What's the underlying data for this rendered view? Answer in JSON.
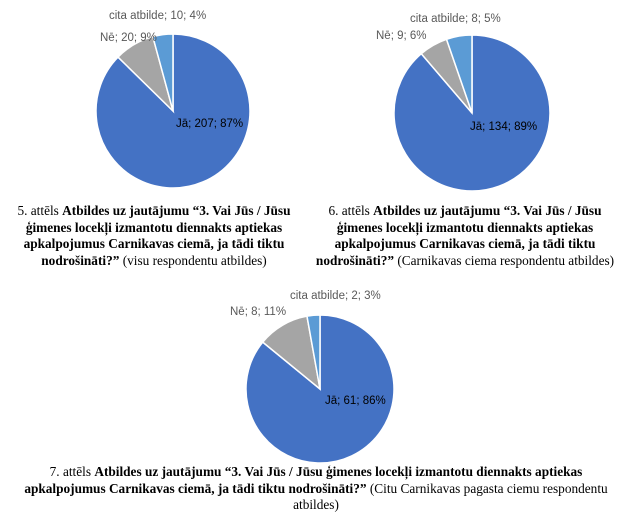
{
  "chart_data": [
    {
      "type": "pie",
      "slices": [
        {
          "category": "Jā",
          "count": 207,
          "percent": 87,
          "label": "Jā; 207; 87%"
        },
        {
          "category": "Nē",
          "count": 20,
          "percent": 9,
          "label": "Nē; 20; 9%"
        },
        {
          "category": "cita atbilde",
          "count": 10,
          "percent": 4,
          "label": "cita atbilde; 10; 4%"
        }
      ]
    },
    {
      "type": "pie",
      "slices": [
        {
          "category": "Jā",
          "count": 134,
          "percent": 89,
          "label": "Jā; 134; 89%"
        },
        {
          "category": "Nē",
          "count": 9,
          "percent": 6,
          "label": "Nē; 9; 6%"
        },
        {
          "category": "cita atbilde",
          "count": 8,
          "percent": 5,
          "label": "cita atbilde; 8; 5%"
        }
      ]
    },
    {
      "type": "pie",
      "slices": [
        {
          "category": "Jā",
          "count": 61,
          "percent": 86,
          "label": "Jā; 61; 86%"
        },
        {
          "category": "Nē",
          "count": 8,
          "percent": 11,
          "label": "Nē; 8; 11%"
        },
        {
          "category": "cita atbilde",
          "count": 2,
          "percent": 3,
          "label": "cita atbilde; 2; 3%"
        }
      ]
    }
  ],
  "colors": {
    "ja": "#4472C4",
    "ne": "#A5A5A5",
    "cita": "#5B9BD5"
  },
  "captions": [
    {
      "prefix": "5. attēls ",
      "bold": "Atbildes uz jautājumu “3. Vai Jūs / Jūsu ģimenes locekļi izmantotu diennakts aptiekas apkalpojumus Carnikavas ciemā, ja tādi tiktu nodrošināti?”",
      "suffix": " (visu respondentu atbildes)"
    },
    {
      "prefix": "6. attēls ",
      "bold": "Atbildes uz jautājumu “3. Vai Jūs / Jūsu ģimenes locekļi izmantotu diennakts aptiekas apkalpojumus Carnikavas ciemā, ja tādi tiktu nodrošināti?”",
      "suffix": " (Carnikavas ciema respondentu atbildes)"
    },
    {
      "prefix": "7. attēls ",
      "bold": "Atbildes uz jautājumu “3. Vai Jūs / Jūsu ģimenes locekļi izmantotu diennakts aptiekas apkalpojumus Carnikavas ciemā, ja tādi tiktu nodrošināti?”",
      "suffix": " (Citu Carnikavas pagasta ciemu respondentu atbildes)"
    }
  ]
}
